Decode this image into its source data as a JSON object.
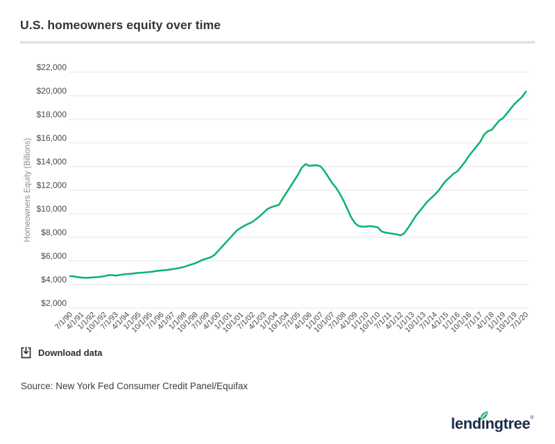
{
  "page": {
    "title": "U.S. homeowners equity over time",
    "download_label": "Download data",
    "source": "Source: New York Fed Consumer Credit Panel/Equifax",
    "logo": {
      "pre": "lend",
      "i": "ı",
      "post": "ngtree",
      "reg": "®"
    }
  },
  "colors": {
    "line": "#0db46e",
    "gridline": "#e4e4e4",
    "tick_label": "#47474f",
    "axis_title": "#8c8c92",
    "title_text": "#32323a",
    "download_text": "#2b2b33",
    "source_text": "#3c3c44",
    "logo_navy": "#1b2b4a",
    "leaf_green": "#2db572",
    "background": "#ffffff"
  },
  "chart_data": {
    "type": "line",
    "title": "U.S. homeowners equity over time",
    "xlabel": "",
    "ylabel": "Homeowners Equity (Billions)",
    "ylim": [
      2000,
      22000
    ],
    "y_tick_step": 2000,
    "y_tick_labels": [
      "$2,000",
      "$4,000",
      "$6,000",
      "$8,000",
      "$10,000",
      "$12,000",
      "$14,000",
      "$16,000",
      "$18,000",
      "$20,000",
      "$22,000"
    ],
    "x_tick_every": 3,
    "x_tick_labels": [
      "7/1/90",
      "4/1/91",
      "1/1/92",
      "10/1/92",
      "7/1/93",
      "4/1/94",
      "1/1/95",
      "10/1/95",
      "7/1/96",
      "4/1/97",
      "1/1/98",
      "10/1/98",
      "7/1/99",
      "4/1/00",
      "1/1/01",
      "10/1/01",
      "7/1/02",
      "4/1/03",
      "1/1/04",
      "10/1/04",
      "7/1/05",
      "4/1/06",
      "1/1/07",
      "10/1/07",
      "7/1/08",
      "4/1/09",
      "1/1/10",
      "10/1/10",
      "7/1/11",
      "4/1/12",
      "1/1/13",
      "10/1/13",
      "7/1/14",
      "4/1/15",
      "1/1/16",
      "10/1/16",
      "7/1/17",
      "4/1/18",
      "1/1/19",
      "10/1/19",
      "7/1/20"
    ],
    "grid": true,
    "legend": false,
    "series_name": "Homeowners equity (billions of dollars)",
    "x": [
      "7/1/90",
      "10/1/90",
      "1/1/91",
      "4/1/91",
      "7/1/91",
      "10/1/91",
      "1/1/92",
      "4/1/92",
      "7/1/92",
      "10/1/92",
      "1/1/93",
      "4/1/93",
      "7/1/93",
      "10/1/93",
      "1/1/94",
      "4/1/94",
      "7/1/94",
      "10/1/94",
      "1/1/95",
      "4/1/95",
      "7/1/95",
      "10/1/95",
      "1/1/96",
      "4/1/96",
      "7/1/96",
      "10/1/96",
      "1/1/97",
      "4/1/97",
      "7/1/97",
      "10/1/97",
      "1/1/98",
      "4/1/98",
      "7/1/98",
      "10/1/98",
      "1/1/99",
      "4/1/99",
      "7/1/99",
      "10/1/99",
      "1/1/00",
      "4/1/00",
      "7/1/00",
      "10/1/00",
      "1/1/01",
      "4/1/01",
      "7/1/01",
      "10/1/01",
      "1/1/02",
      "4/1/02",
      "7/1/02",
      "10/1/02",
      "1/1/03",
      "4/1/03",
      "7/1/03",
      "10/1/03",
      "1/1/04",
      "4/1/04",
      "7/1/04",
      "10/1/04",
      "1/1/05",
      "4/1/05",
      "7/1/05",
      "10/1/05",
      "1/1/06",
      "4/1/06",
      "7/1/06",
      "10/1/06",
      "1/1/07",
      "4/1/07",
      "7/1/07",
      "10/1/07",
      "1/1/08",
      "4/1/08",
      "7/1/08",
      "10/1/08",
      "1/1/09",
      "4/1/09",
      "7/1/09",
      "10/1/09",
      "1/1/10",
      "4/1/10",
      "7/1/10",
      "10/1/10",
      "1/1/11",
      "4/1/11",
      "7/1/11",
      "10/1/11",
      "1/1/12",
      "4/1/12",
      "7/1/12",
      "10/1/12",
      "1/1/13",
      "4/1/13",
      "7/1/13",
      "10/1/13",
      "1/1/14",
      "4/1/14",
      "7/1/14",
      "10/1/14",
      "1/1/15",
      "4/1/15",
      "7/1/15",
      "10/1/15",
      "1/1/16",
      "4/1/16",
      "7/1/16",
      "10/1/16",
      "1/1/17",
      "4/1/17",
      "7/1/17",
      "10/1/17",
      "1/1/18",
      "4/1/18",
      "7/1/18",
      "10/1/18",
      "1/1/19",
      "4/1/19",
      "7/1/19",
      "10/1/19",
      "1/1/20",
      "4/1/20",
      "7/1/20"
    ],
    "values": [
      4700,
      4680,
      4620,
      4580,
      4560,
      4570,
      4600,
      4620,
      4650,
      4700,
      4780,
      4800,
      4750,
      4800,
      4850,
      4880,
      4900,
      4950,
      4980,
      5000,
      5030,
      5060,
      5100,
      5150,
      5180,
      5210,
      5250,
      5300,
      5350,
      5420,
      5480,
      5600,
      5700,
      5800,
      5950,
      6100,
      6200,
      6300,
      6500,
      6850,
      7200,
      7550,
      7900,
      8250,
      8600,
      8800,
      9000,
      9150,
      9300,
      9550,
      9800,
      10100,
      10400,
      10550,
      10650,
      10750,
      11300,
      11800,
      12300,
      12800,
      13300,
      13900,
      14200,
      14050,
      14100,
      14100,
      14000,
      13600,
      13100,
      12600,
      12200,
      11700,
      11100,
      10400,
      9700,
      9200,
      8950,
      8900,
      8900,
      8950,
      8900,
      8850,
      8500,
      8400,
      8350,
      8300,
      8250,
      8150,
      8350,
      8800,
      9300,
      9800,
      10200,
      10600,
      11000,
      11300,
      11600,
      11950,
      12400,
      12800,
      13100,
      13400,
      13600,
      14000,
      14400,
      14900,
      15300,
      15700,
      16100,
      16700,
      17000,
      17100,
      17500,
      17900,
      18100,
      18500,
      18900,
      19300,
      19600,
      19900,
      20350
    ]
  }
}
